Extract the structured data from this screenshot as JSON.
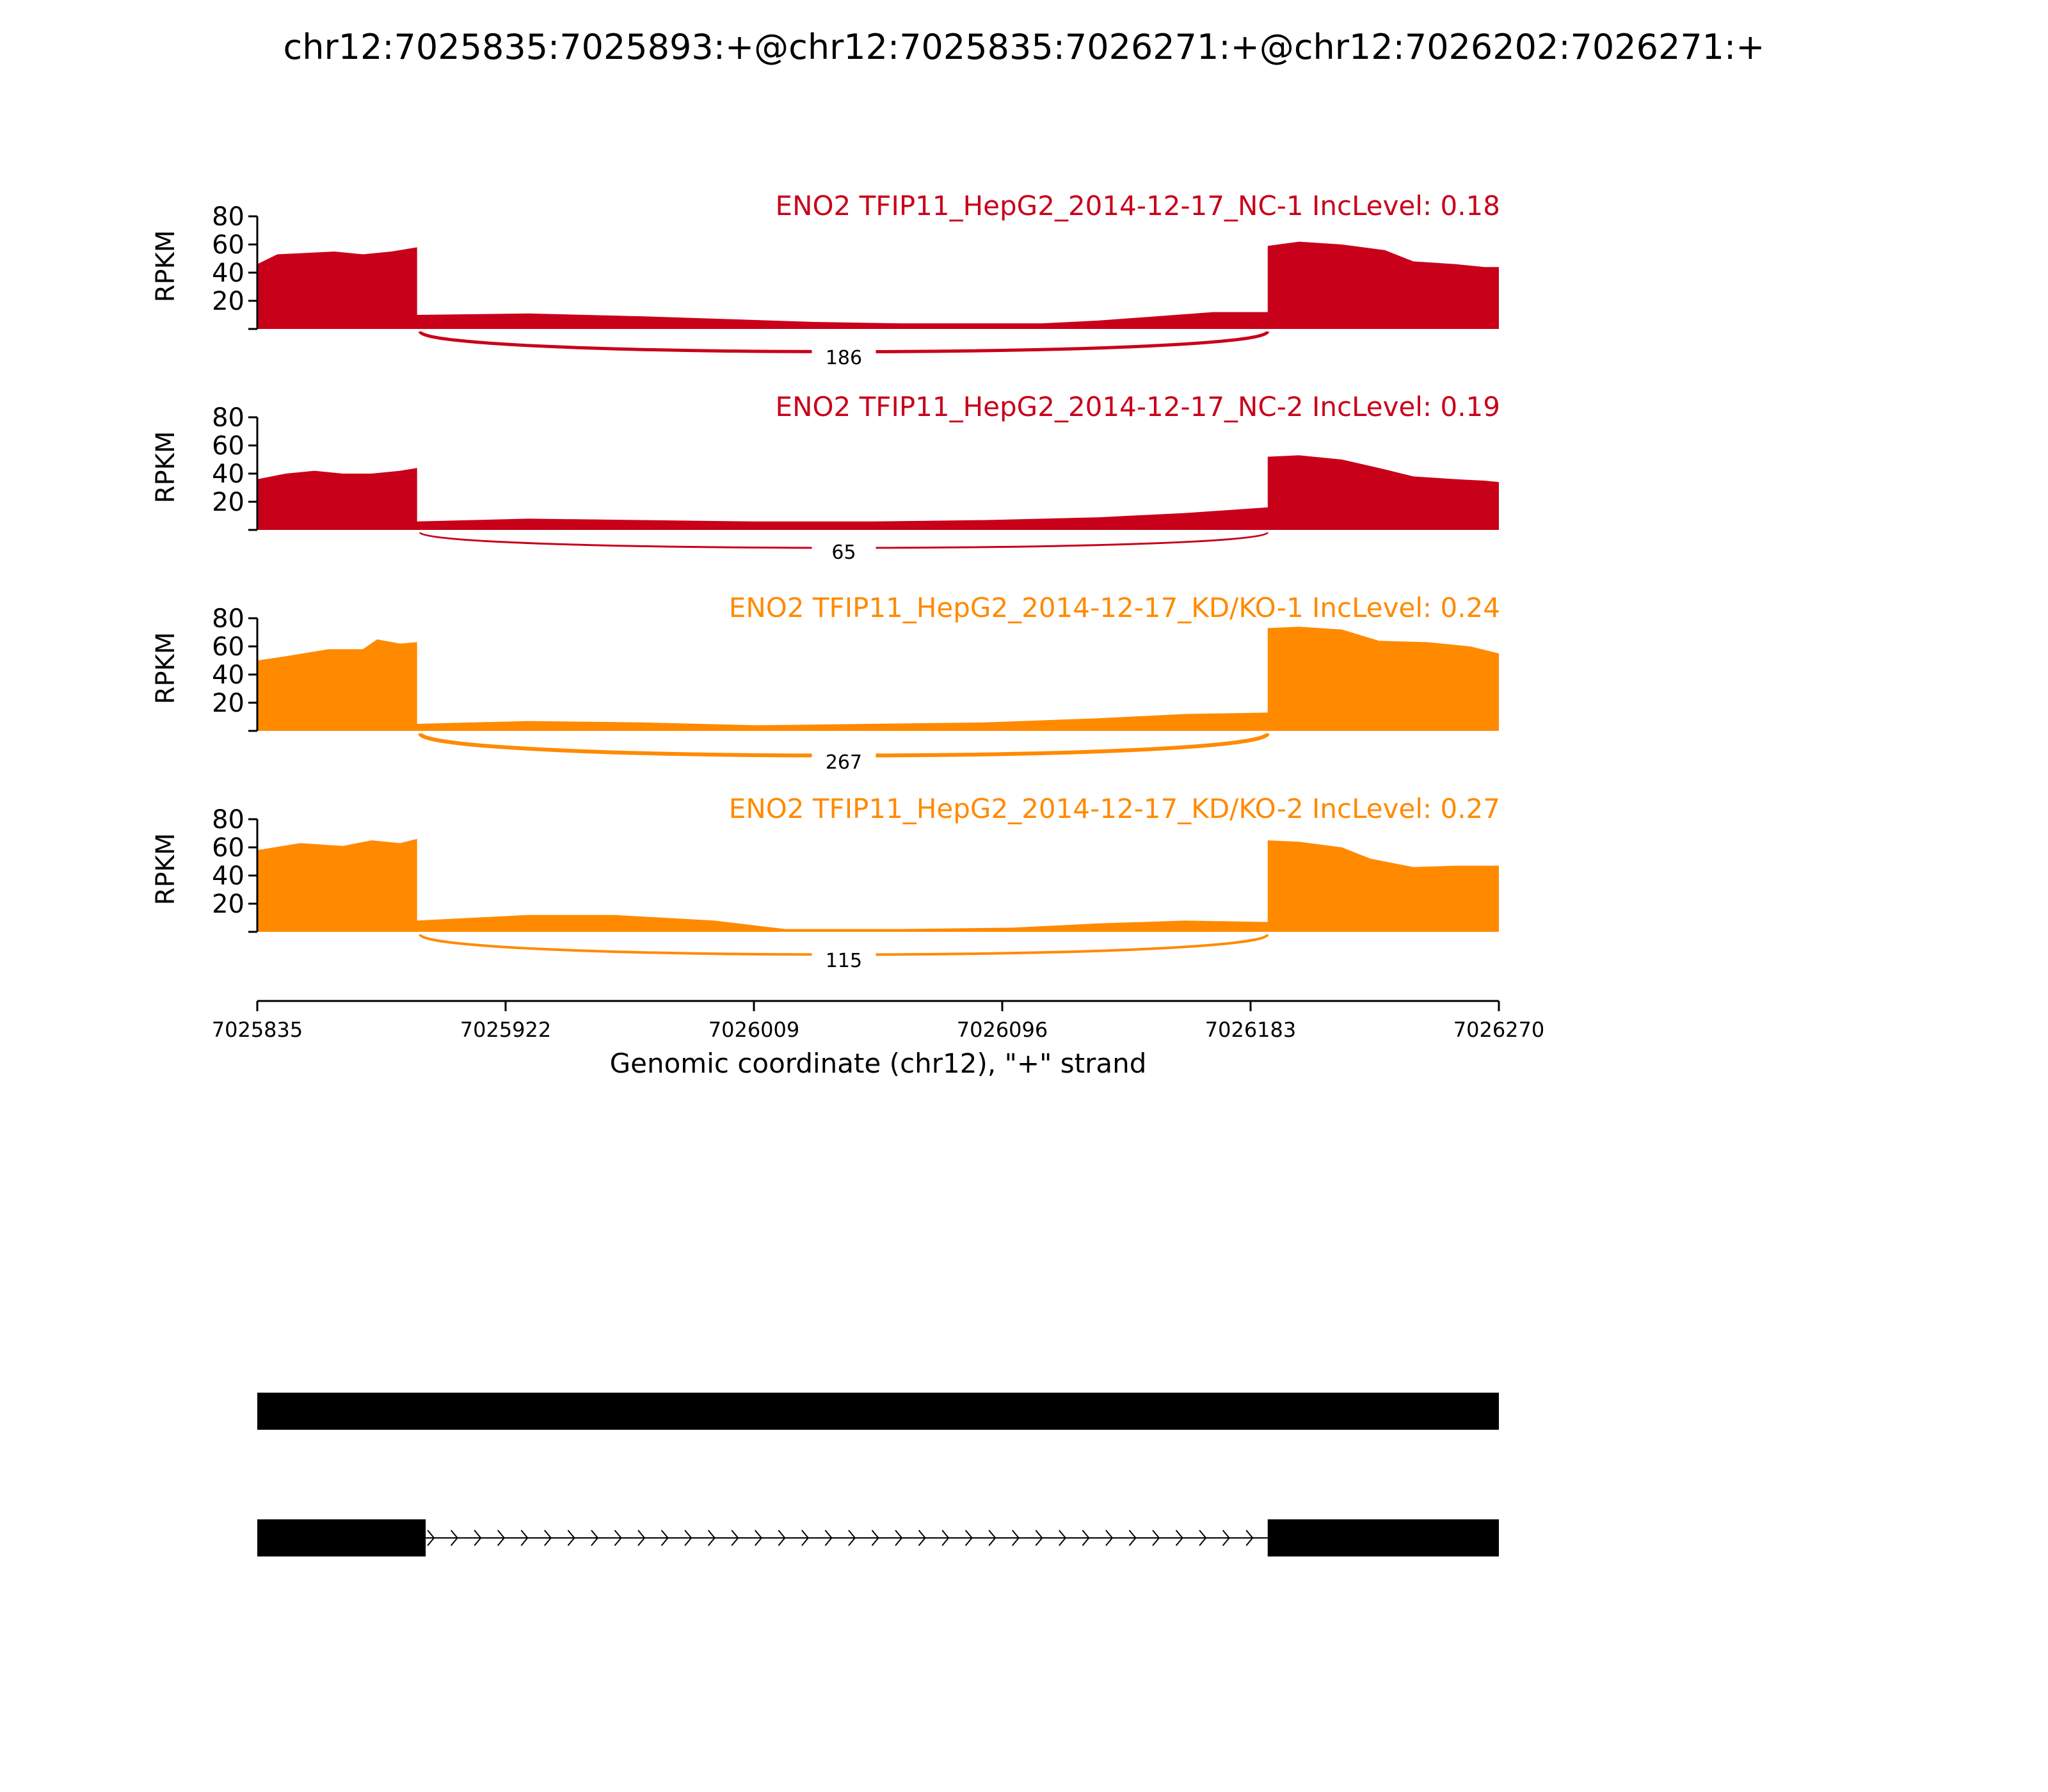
{
  "chart_data": {
    "type": "area",
    "title": "chr12:7025835:7025893:+@chr12:7025835:7026271:+@chr12:7026202:7026271:+",
    "xlabel": "Genomic coordinate (chr12), \"+\" strand",
    "ylabel": "RPKM",
    "xlim": [
      7025835,
      7026270
    ],
    "ylim": [
      0,
      80
    ],
    "x_ticks": [
      "7025835",
      "7025922",
      "7026009",
      "7026096",
      "7026183",
      "7026270"
    ],
    "y_ticks": [
      "20",
      "40",
      "60",
      "80"
    ],
    "exon1": [
      7025835,
      7025893
    ],
    "exon2": [
      7026202,
      7026270
    ],
    "series": [
      {
        "name": "ENO2 TFIP11_HepG2_2014-12-17_NC-1 IncLevel: 0.18",
        "color": "#c9001a",
        "junction_label": "186",
        "coverage": [
          [
            7025835,
            46
          ],
          [
            7025842,
            53
          ],
          [
            7025852,
            54
          ],
          [
            7025862,
            55
          ],
          [
            7025872,
            53
          ],
          [
            7025882,
            55
          ],
          [
            7025891,
            58
          ],
          [
            7025891,
            10
          ],
          [
            7025930,
            11
          ],
          [
            7025970,
            9
          ],
          [
            7026000,
            7
          ],
          [
            7026030,
            5
          ],
          [
            7026060,
            4
          ],
          [
            7026090,
            4
          ],
          [
            7026110,
            4
          ],
          [
            7026130,
            6
          ],
          [
            7026150,
            9
          ],
          [
            7026170,
            12
          ],
          [
            7026189,
            12
          ],
          [
            7026189,
            59
          ],
          [
            7026200,
            62
          ],
          [
            7026215,
            60
          ],
          [
            7026230,
            56
          ],
          [
            7026240,
            48
          ],
          [
            7026255,
            46
          ],
          [
            7026265,
            44
          ],
          [
            7026270,
            44
          ]
        ]
      },
      {
        "name": "ENO2 TFIP11_HepG2_2014-12-17_NC-2 IncLevel: 0.19",
        "color": "#c9001a",
        "junction_label": "65",
        "coverage": [
          [
            7025835,
            36
          ],
          [
            7025845,
            40
          ],
          [
            7025855,
            42
          ],
          [
            7025865,
            40
          ],
          [
            7025875,
            40
          ],
          [
            7025885,
            42
          ],
          [
            7025891,
            44
          ],
          [
            7025891,
            6
          ],
          [
            7025930,
            8
          ],
          [
            7025970,
            7
          ],
          [
            7026010,
            6
          ],
          [
            7026050,
            6
          ],
          [
            7026090,
            7
          ],
          [
            7026130,
            9
          ],
          [
            7026160,
            12
          ],
          [
            7026189,
            16
          ],
          [
            7026189,
            52
          ],
          [
            7026200,
            53
          ],
          [
            7026215,
            50
          ],
          [
            7026228,
            44
          ],
          [
            7026240,
            38
          ],
          [
            7026255,
            36
          ],
          [
            7026265,
            35
          ],
          [
            7026270,
            34
          ]
        ]
      },
      {
        "name": "ENO2 TFIP11_HepG2_2014-12-17_KD/KO-1 IncLevel: 0.24",
        "color": "#ff8a00",
        "junction_label": "267",
        "coverage": [
          [
            7025835,
            50
          ],
          [
            7025845,
            53
          ],
          [
            7025860,
            58
          ],
          [
            7025872,
            58
          ],
          [
            7025877,
            65
          ],
          [
            7025885,
            62
          ],
          [
            7025891,
            63
          ],
          [
            7025891,
            5
          ],
          [
            7025930,
            7
          ],
          [
            7025970,
            6
          ],
          [
            7026010,
            4
          ],
          [
            7026050,
            5
          ],
          [
            7026090,
            6
          ],
          [
            7026130,
            9
          ],
          [
            7026160,
            12
          ],
          [
            7026189,
            13
          ],
          [
            7026189,
            73
          ],
          [
            7026200,
            74
          ],
          [
            7026215,
            72
          ],
          [
            7026228,
            64
          ],
          [
            7026245,
            63
          ],
          [
            7026260,
            60
          ],
          [
            7026270,
            55
          ]
        ]
      },
      {
        "name": "ENO2 TFIP11_HepG2_2014-12-17_KD/KO-2 IncLevel: 0.27",
        "color": "#ff8a00",
        "junction_label": "115",
        "coverage": [
          [
            7025835,
            58
          ],
          [
            7025850,
            63
          ],
          [
            7025865,
            61
          ],
          [
            7025875,
            65
          ],
          [
            7025885,
            63
          ],
          [
            7025891,
            66
          ],
          [
            7025891,
            8
          ],
          [
            7025930,
            12
          ],
          [
            7025960,
            12
          ],
          [
            7025995,
            8
          ],
          [
            7026020,
            2
          ],
          [
            7026060,
            2
          ],
          [
            7026100,
            3
          ],
          [
            7026130,
            6
          ],
          [
            7026160,
            8
          ],
          [
            7026189,
            7
          ],
          [
            7026189,
            65
          ],
          [
            7026200,
            64
          ],
          [
            7026215,
            60
          ],
          [
            7026225,
            52
          ],
          [
            7026240,
            46
          ],
          [
            7026255,
            47
          ],
          [
            7026270,
            47
          ]
        ]
      }
    ]
  }
}
